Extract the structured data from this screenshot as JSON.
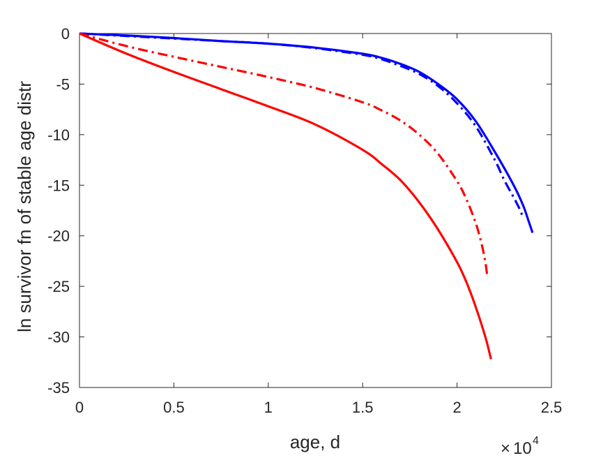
{
  "chart_data": {
    "type": "line",
    "title": "",
    "xlabel": "age, d",
    "ylabel": "ln survivor fn of stable age distr",
    "x_multiplier": {
      "base": "10",
      "exponent": "4"
    },
    "xlim": [
      0,
      2.5
    ],
    "ylim": [
      -35,
      0
    ],
    "xticks": [
      0,
      0.5,
      1,
      1.5,
      2,
      2.5
    ],
    "xtick_labels": [
      "0",
      "0.5",
      "1",
      "1.5",
      "2",
      "2.5"
    ],
    "yticks": [
      0,
      -5,
      -10,
      -15,
      -20,
      -25,
      -30,
      -35
    ],
    "ytick_labels": [
      "0",
      "-5",
      "-10",
      "-15",
      "-20",
      "-25",
      "-30",
      "-35"
    ],
    "grid": false,
    "box": true,
    "series": [
      {
        "color": "#0000ff",
        "style": "solid",
        "x": [
          0,
          0.25,
          0.5,
          0.75,
          1.0,
          1.25,
          1.5,
          1.6,
          1.7,
          1.8,
          1.9,
          2.0,
          2.1,
          2.2,
          2.3,
          2.35,
          2.38,
          2.4
        ],
        "y": [
          0,
          -0.2,
          -0.45,
          -0.75,
          -1.0,
          -1.4,
          -2.0,
          -2.4,
          -3.0,
          -3.8,
          -5.0,
          -6.5,
          -8.7,
          -11.7,
          -15.0,
          -17.0,
          -18.6,
          -19.7
        ]
      },
      {
        "color": "#0000ff",
        "style": "dashdot",
        "x": [
          0,
          0.25,
          0.5,
          0.75,
          1.0,
          1.25,
          1.5,
          1.6,
          1.7,
          1.8,
          1.9,
          2.0,
          2.1,
          2.2,
          2.25,
          2.3,
          2.33,
          2.35
        ],
        "y": [
          0,
          -0.25,
          -0.5,
          -0.75,
          -1.0,
          -1.45,
          -2.1,
          -2.55,
          -3.2,
          -4.0,
          -5.2,
          -6.9,
          -9.2,
          -12.5,
          -14.5,
          -16.2,
          -17.3,
          -18.2
        ]
      },
      {
        "color": "#ff0000",
        "style": "dashdot",
        "x": [
          0,
          0.25,
          0.5,
          0.75,
          1.0,
          1.25,
          1.5,
          1.6,
          1.7,
          1.8,
          1.9,
          2.0,
          2.05,
          2.1,
          2.13,
          2.15,
          2.16
        ],
        "y": [
          0,
          -1.25,
          -2.3,
          -3.3,
          -4.3,
          -5.4,
          -6.8,
          -7.6,
          -8.6,
          -10.0,
          -11.9,
          -14.6,
          -16.4,
          -18.8,
          -20.8,
          -22.6,
          -24.0
        ]
      },
      {
        "color": "#ff0000",
        "style": "solid",
        "x": [
          0,
          0.25,
          0.5,
          0.75,
          1.0,
          1.25,
          1.5,
          1.6,
          1.7,
          1.8,
          1.9,
          2.0,
          2.05,
          2.1,
          2.15,
          2.18
        ],
        "y": [
          0,
          -2.0,
          -3.8,
          -5.5,
          -7.2,
          -9.0,
          -11.5,
          -12.9,
          -14.5,
          -16.7,
          -19.4,
          -22.6,
          -24.6,
          -27.1,
          -30.0,
          -32.2
        ]
      }
    ]
  }
}
